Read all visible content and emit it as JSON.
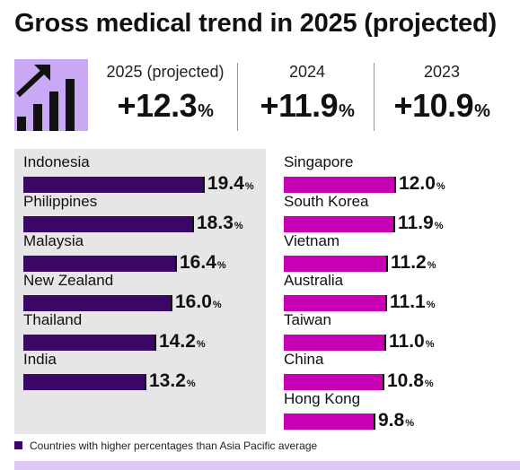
{
  "title": "Gross medical trend in 2025 (projected)",
  "stats": [
    {
      "label": "2025 (projected)",
      "value": "+12.3",
      "unit": "%"
    },
    {
      "label": "2024",
      "value": "+11.9",
      "unit": "%"
    },
    {
      "label": "2023",
      "value": "+10.9",
      "unit": "%"
    }
  ],
  "colors": {
    "above_average": "#3b0764",
    "below_average": "#c800b4",
    "panel_background": "#e6e6e6",
    "icon_background": "#c9a8f5",
    "bottom_strip": "#dcc7f5"
  },
  "legend": {
    "label": "Countries with higher percentages than Asia Pacific average"
  },
  "chart_data": [
    {
      "type": "bar",
      "orientation": "horizontal",
      "categories": [
        "Indonesia",
        "Philippines",
        "Malaysia",
        "New Zealand",
        "Thailand",
        "India"
      ],
      "values": [
        19.4,
        18.3,
        16.4,
        16.0,
        14.2,
        13.2
      ],
      "value_labels": [
        "19.4",
        "18.3",
        "16.4",
        "16.0",
        "14.2",
        "13.2"
      ],
      "unit": "%",
      "group": "above_average",
      "color": "#3b0764"
    },
    {
      "type": "bar",
      "orientation": "horizontal",
      "categories": [
        "Singapore",
        "South Korea",
        "Vietnam",
        "Australia",
        "Taiwan",
        "China",
        "Hong Kong"
      ],
      "values": [
        12.0,
        11.9,
        11.2,
        11.1,
        11.0,
        10.8,
        9.8
      ],
      "value_labels": [
        "12.0",
        "11.9",
        "11.2",
        "11.1",
        "11.0",
        "10.8",
        "9.8"
      ],
      "unit": "%",
      "group": "below_average",
      "color": "#c800b4"
    }
  ]
}
